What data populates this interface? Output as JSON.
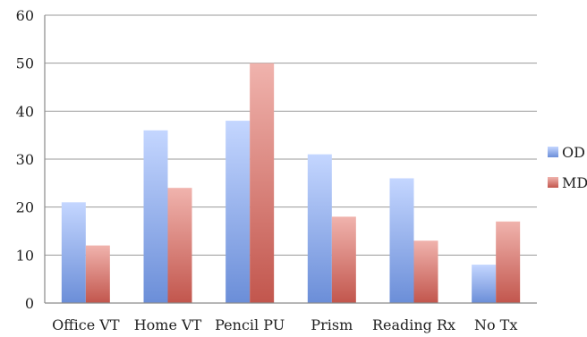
{
  "chart_data": {
    "type": "bar",
    "categories": [
      "Office VT",
      "Home VT",
      "Pencil PU",
      "Prism",
      "Reading Rx",
      "No Tx"
    ],
    "series": [
      {
        "name": "OD",
        "values": [
          21,
          36,
          38,
          31,
          26,
          8
        ],
        "color_light": "#c4d6ff",
        "color_dark": "#6b8ed8"
      },
      {
        "name": "MD",
        "values": [
          12,
          24,
          50,
          18,
          13,
          17
        ],
        "color_light": "#f0b3ad",
        "color_dark": "#c2564d"
      }
    ],
    "title": "",
    "xlabel": "",
    "ylabel": "",
    "ylim": [
      0,
      60
    ],
    "yticks": [
      0,
      10,
      20,
      30,
      40,
      50,
      60
    ],
    "grid": true,
    "legend_position": "right"
  }
}
